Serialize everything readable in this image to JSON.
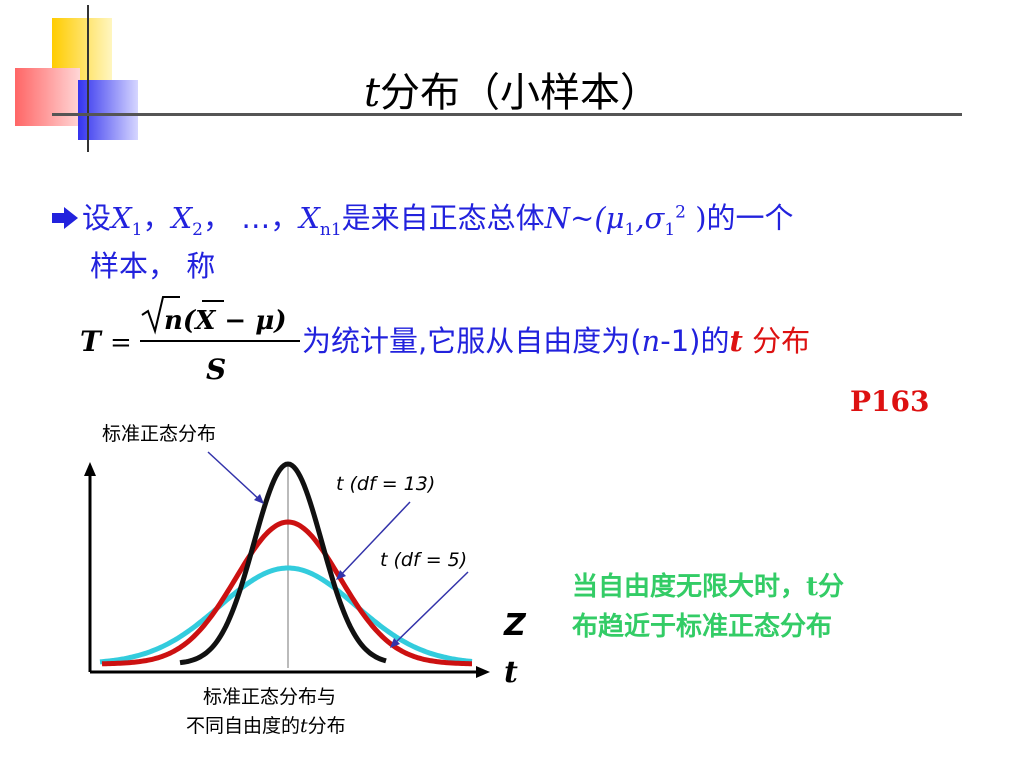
{
  "title": {
    "t": "t",
    "rest": "分布（小样本）"
  },
  "statement": {
    "part1": "设",
    "x1": "X",
    "x1_sub": "1",
    "sep1": "，",
    "x2": "X",
    "x2_sub": "2",
    "sep2": "，  …，",
    "xn": "X",
    "xn_sub": "n1",
    "part2": "是来自正态总体",
    "dist": "N~(μ",
    "mu_sub": "1",
    "comma": ",σ",
    "sigma_sub": "1",
    "sigma_sup": "2",
    "close": " )",
    "part3": "的一个",
    "line2": "样本，  称"
  },
  "equation": {
    "lhs": "T",
    "eq": "=",
    "numerator": "n(X − μ)",
    "denominator": "S",
    "text1": "为统计量,它服从自由度为(",
    "n": "n",
    "text2": "-1)的",
    "t": "t",
    "text3": " 分布"
  },
  "page_ref": "P163",
  "figure": {
    "label_normal": "标准正态分布",
    "label_df13": "t (df = 13)",
    "label_df5": "t (df = 5)",
    "axis_z": "Z",
    "axis_t": "t",
    "caption_line1": "标准正态分布与",
    "caption_line2_a": "不同自由度的",
    "caption_line2_t": "t",
    "caption_line2_b": "分布"
  },
  "note": {
    "line1_a": "当自由度无限大时，",
    "line1_t": "t",
    "line1_b": "分",
    "line2": "布趋近于标准正态分布"
  },
  "colors": {
    "blue_text": "#2222dd",
    "red_text": "#dd1111",
    "green_text": "#33cc66",
    "normal_curve": "#111111",
    "df13_curve": "#cc1111",
    "df5_curve": "#33ccdd"
  }
}
